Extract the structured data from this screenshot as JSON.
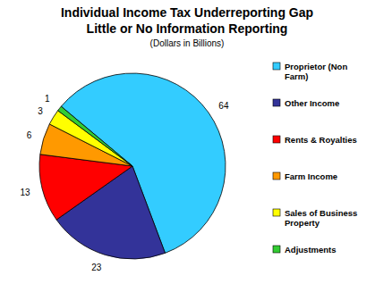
{
  "chart_data": {
    "type": "pie",
    "title": "Individual Income Tax Underreporting Gap",
    "subtitle": "Little or No Information Reporting",
    "annotation": "(Dollars in Billions)",
    "categories": [
      "Proprietor (Non Farm)",
      "Other Income",
      "Rents & Royalties",
      "Farm Income",
      "Sales of Business Property",
      "Adjustments"
    ],
    "values": [
      64,
      23,
      13,
      6,
      3,
      1
    ],
    "colors": [
      "#33CCFF",
      "#333399",
      "#FF0000",
      "#FF9900",
      "#FFFF00",
      "#33CC33"
    ],
    "data_labels": true,
    "legend": "right"
  }
}
